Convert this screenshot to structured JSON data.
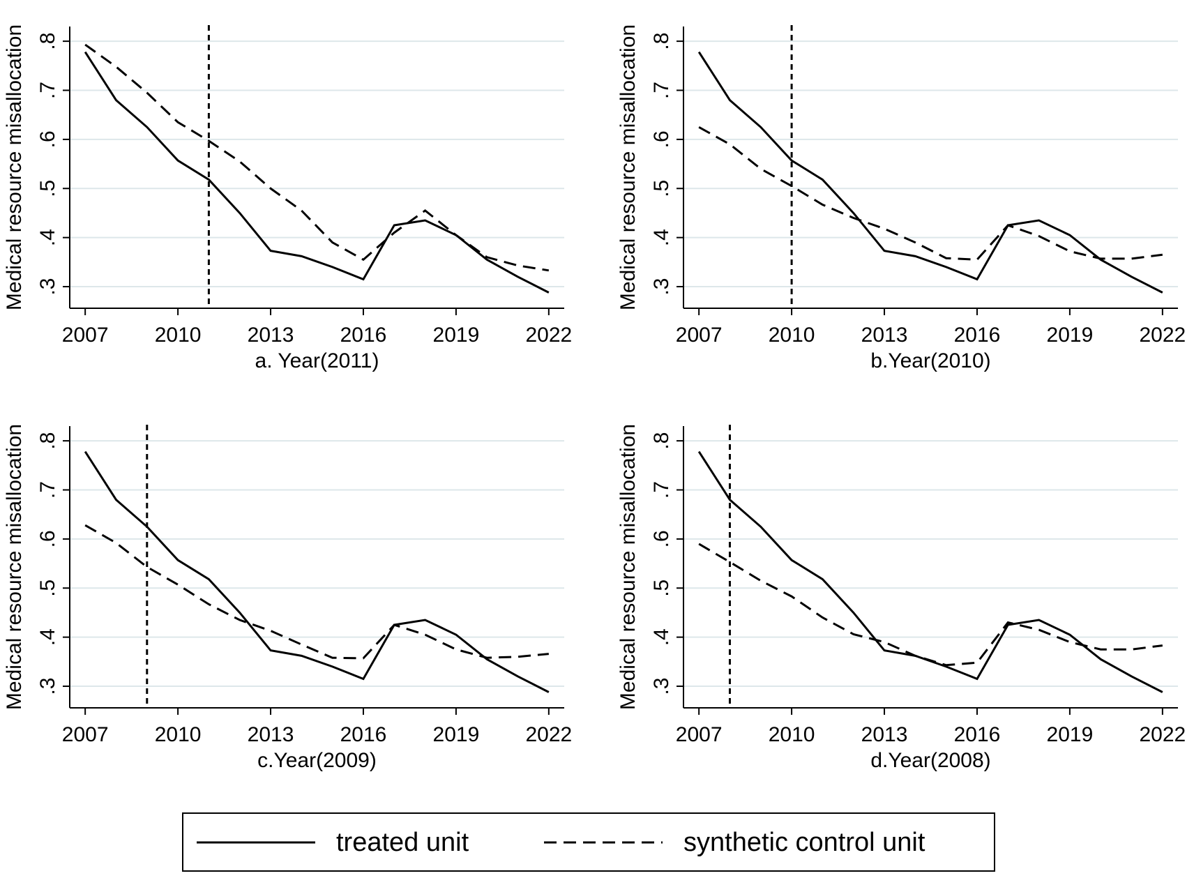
{
  "chart_data": [
    {
      "type": "line",
      "xlabel": "a. Year(2011)",
      "ylabel": "Medical resource misallocation",
      "x": [
        2007,
        2008,
        2009,
        2010,
        2011,
        2012,
        2013,
        2014,
        2015,
        2016,
        2017,
        2018,
        2019,
        2020,
        2021,
        2022
      ],
      "series": [
        {
          "name": "treated unit",
          "color": "#000000",
          "dash": "none",
          "values": [
            0.778,
            0.68,
            0.625,
            0.557,
            0.518,
            0.45,
            0.373,
            0.362,
            0.34,
            0.315,
            0.425,
            0.435,
            0.405,
            0.355,
            0.32,
            0.288
          ]
        },
        {
          "name": "synthetic control unit",
          "color": "#000000",
          "dash": "18 10",
          "values": [
            0.793,
            0.748,
            0.695,
            0.635,
            0.597,
            0.555,
            0.5,
            0.455,
            0.39,
            0.355,
            0.41,
            0.455,
            0.405,
            0.36,
            0.343,
            0.333
          ]
        }
      ],
      "vline": 2011,
      "xlim": [
        2006.5,
        2022.5
      ],
      "ylim": [
        0.256,
        0.83
      ],
      "xticks": [
        2007,
        2010,
        2013,
        2016,
        2019,
        2022
      ],
      "yticks": [
        {
          "value": 0.3,
          "label": ".3"
        },
        {
          "value": 0.4,
          "label": ".4"
        },
        {
          "value": 0.5,
          "label": ".5"
        },
        {
          "value": 0.6,
          "label": ".6"
        },
        {
          "value": 0.7,
          "label": ".7"
        },
        {
          "value": 0.8,
          "label": ".8"
        }
      ],
      "grid": true
    },
    {
      "type": "line",
      "xlabel": "b.Year(2010)",
      "ylabel": "Medical resource misallocation",
      "x": [
        2007,
        2008,
        2009,
        2010,
        2011,
        2012,
        2013,
        2014,
        2015,
        2016,
        2017,
        2018,
        2019,
        2020,
        2021,
        2022
      ],
      "series": [
        {
          "name": "treated unit",
          "color": "#000000",
          "dash": "none",
          "values": [
            0.778,
            0.68,
            0.625,
            0.557,
            0.518,
            0.45,
            0.373,
            0.362,
            0.34,
            0.315,
            0.425,
            0.435,
            0.405,
            0.355,
            0.32,
            0.288
          ]
        },
        {
          "name": "synthetic control unit",
          "color": "#000000",
          "dash": "18 10",
          "values": [
            0.625,
            0.59,
            0.54,
            0.505,
            0.467,
            0.44,
            0.418,
            0.39,
            0.358,
            0.355,
            0.425,
            0.403,
            0.372,
            0.357,
            0.357,
            0.365
          ]
        }
      ],
      "vline": 2010,
      "xlim": [
        2006.5,
        2022.5
      ],
      "ylim": [
        0.256,
        0.83
      ],
      "xticks": [
        2007,
        2010,
        2013,
        2016,
        2019,
        2022
      ],
      "yticks": [
        {
          "value": 0.3,
          "label": ".3"
        },
        {
          "value": 0.4,
          "label": ".4"
        },
        {
          "value": 0.5,
          "label": ".5"
        },
        {
          "value": 0.6,
          "label": ".6"
        },
        {
          "value": 0.7,
          "label": ".7"
        },
        {
          "value": 0.8,
          "label": ".8"
        }
      ],
      "grid": true
    },
    {
      "type": "line",
      "xlabel": "c.Year(2009)",
      "ylabel": "Medical resource misallocation",
      "x": [
        2007,
        2008,
        2009,
        2010,
        2011,
        2012,
        2013,
        2014,
        2015,
        2016,
        2017,
        2018,
        2019,
        2020,
        2021,
        2022
      ],
      "series": [
        {
          "name": "treated unit",
          "color": "#000000",
          "dash": "none",
          "values": [
            0.778,
            0.68,
            0.625,
            0.557,
            0.518,
            0.45,
            0.373,
            0.362,
            0.34,
            0.315,
            0.425,
            0.435,
            0.405,
            0.355,
            0.32,
            0.288
          ]
        },
        {
          "name": "synthetic control unit",
          "color": "#000000",
          "dash": "18 10",
          "values": [
            0.628,
            0.592,
            0.543,
            0.507,
            0.467,
            0.435,
            0.413,
            0.385,
            0.358,
            0.357,
            0.425,
            0.405,
            0.375,
            0.358,
            0.36,
            0.366
          ]
        }
      ],
      "vline": 2009,
      "xlim": [
        2006.5,
        2022.5
      ],
      "ylim": [
        0.256,
        0.83
      ],
      "xticks": [
        2007,
        2010,
        2013,
        2016,
        2019,
        2022
      ],
      "yticks": [
        {
          "value": 0.3,
          "label": ".3"
        },
        {
          "value": 0.4,
          "label": ".4"
        },
        {
          "value": 0.5,
          "label": ".5"
        },
        {
          "value": 0.6,
          "label": ".6"
        },
        {
          "value": 0.7,
          "label": ".7"
        },
        {
          "value": 0.8,
          "label": ".8"
        }
      ],
      "grid": true
    },
    {
      "type": "line",
      "xlabel": "d.Year(2008)",
      "ylabel": "Medical resource misallocation",
      "x": [
        2007,
        2008,
        2009,
        2010,
        2011,
        2012,
        2013,
        2014,
        2015,
        2016,
        2017,
        2018,
        2019,
        2020,
        2021,
        2022
      ],
      "series": [
        {
          "name": "treated unit",
          "color": "#000000",
          "dash": "none",
          "values": [
            0.778,
            0.68,
            0.625,
            0.557,
            0.518,
            0.45,
            0.373,
            0.362,
            0.34,
            0.315,
            0.425,
            0.435,
            0.405,
            0.355,
            0.32,
            0.288
          ]
        },
        {
          "name": "synthetic control unit",
          "color": "#000000",
          "dash": "18 10",
          "values": [
            0.59,
            0.553,
            0.515,
            0.483,
            0.44,
            0.406,
            0.39,
            0.362,
            0.343,
            0.348,
            0.43,
            0.415,
            0.39,
            0.375,
            0.375,
            0.383
          ]
        }
      ],
      "vline": 2008,
      "xlim": [
        2006.5,
        2022.5
      ],
      "ylim": [
        0.256,
        0.83
      ],
      "xticks": [
        2007,
        2010,
        2013,
        2016,
        2019,
        2022
      ],
      "yticks": [
        {
          "value": 0.3,
          "label": ".3"
        },
        {
          "value": 0.4,
          "label": ".4"
        },
        {
          "value": 0.5,
          "label": ".5"
        },
        {
          "value": 0.6,
          "label": ".6"
        },
        {
          "value": 0.7,
          "label": ".7"
        },
        {
          "value": 0.8,
          "label": ".8"
        }
      ],
      "grid": true
    }
  ]
}
